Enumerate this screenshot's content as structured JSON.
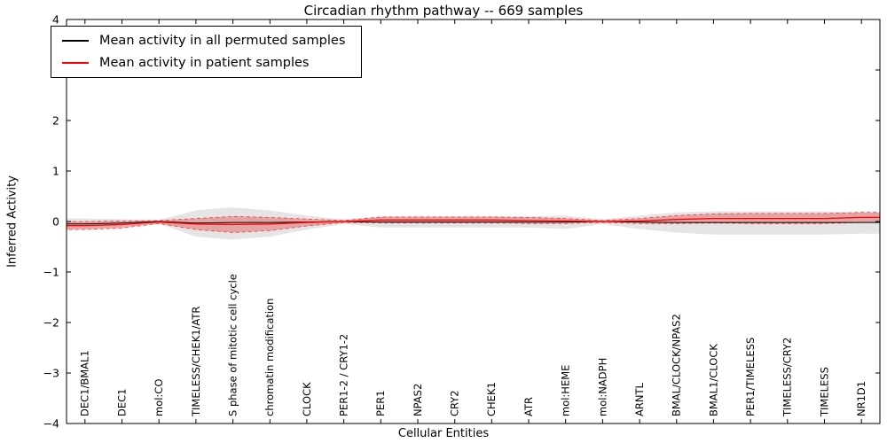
{
  "title": "Circadian rhythm pathway -- 669 samples",
  "xlabel": "Cellular Entities",
  "ylabel": "Inferred Activity",
  "legend": {
    "items": [
      {
        "label": "Mean activity in all permuted samples",
        "color": "#000000"
      },
      {
        "label": "Mean activity in patient samples",
        "color": "#ff0000"
      }
    ]
  },
  "chart_data": {
    "type": "line",
    "title": "Circadian rhythm pathway -- 669 samples",
    "xlabel": "Cellular Entities",
    "ylabel": "Inferred Activity",
    "ylim": [
      -4,
      4
    ],
    "yticks": [
      -4,
      -3,
      -2,
      -1,
      0,
      1,
      2,
      3,
      4
    ],
    "grid": false,
    "legend_position": "upper left",
    "categories": [
      "DEC1/BMAL1",
      "DEC1",
      "mol:CO",
      "TIMELESS/CHEK1/ATR",
      "S phase of mitotic cell cycle",
      "chromatin modification",
      "CLOCK",
      "PER1-2 / CRY1-2",
      "PER1",
      "NPAS2",
      "CRY2",
      "CHEK1",
      "ATR",
      "mol:HEME",
      "mol:NADPH",
      "ARNTL",
      "BMAL/CLOCK/NPAS2",
      "BMAL1/CLOCK",
      "PER1/TIMELESS",
      "TIMELESS/CRY2",
      "TIMELESS",
      "NR1D1"
    ],
    "series": [
      {
        "name": "Mean activity in all permuted samples",
        "color": "#000000",
        "band_color": "#999999",
        "band_opacity": 0.25,
        "values": [
          -0.05,
          -0.03,
          0.0,
          -0.03,
          -0.02,
          -0.02,
          -0.01,
          0.0,
          -0.01,
          -0.01,
          -0.01,
          -0.01,
          -0.01,
          -0.01,
          0.0,
          -0.01,
          -0.02,
          -0.02,
          -0.02,
          -0.02,
          -0.02,
          -0.02
        ],
        "band_upper": [
          0.06,
          0.05,
          0.03,
          0.22,
          0.28,
          0.22,
          0.12,
          0.04,
          0.1,
          0.1,
          0.1,
          0.1,
          0.1,
          0.12,
          0.04,
          0.12,
          0.18,
          0.2,
          0.2,
          0.2,
          0.2,
          0.18
        ],
        "band_lower": [
          -0.14,
          -0.1,
          -0.04,
          -0.3,
          -0.36,
          -0.3,
          -0.16,
          -0.05,
          -0.12,
          -0.12,
          -0.12,
          -0.12,
          -0.12,
          -0.15,
          -0.05,
          -0.15,
          -0.22,
          -0.26,
          -0.26,
          -0.26,
          -0.26,
          -0.24
        ]
      },
      {
        "name": "Mean activity in patient samples",
        "color": "#ff0000",
        "band_color": "#e05555",
        "band_opacity": 0.45,
        "values": [
          -0.08,
          -0.06,
          -0.01,
          -0.05,
          -0.06,
          -0.05,
          -0.02,
          0.0,
          0.03,
          0.03,
          0.03,
          0.03,
          0.02,
          0.01,
          0.0,
          0.01,
          0.04,
          0.06,
          0.06,
          0.06,
          0.06,
          0.08
        ],
        "band_upper": [
          0.0,
          0.01,
          0.02,
          0.06,
          0.1,
          0.08,
          0.05,
          0.02,
          0.09,
          0.09,
          0.09,
          0.09,
          0.08,
          0.06,
          0.02,
          0.06,
          0.12,
          0.15,
          0.16,
          0.16,
          0.16,
          0.18
        ],
        "band_lower": [
          -0.16,
          -0.13,
          -0.04,
          -0.16,
          -0.22,
          -0.18,
          -0.09,
          -0.02,
          -0.03,
          -0.03,
          -0.03,
          -0.03,
          -0.04,
          -0.04,
          -0.02,
          -0.04,
          -0.04,
          -0.03,
          -0.04,
          -0.04,
          -0.04,
          -0.02
        ]
      }
    ]
  }
}
